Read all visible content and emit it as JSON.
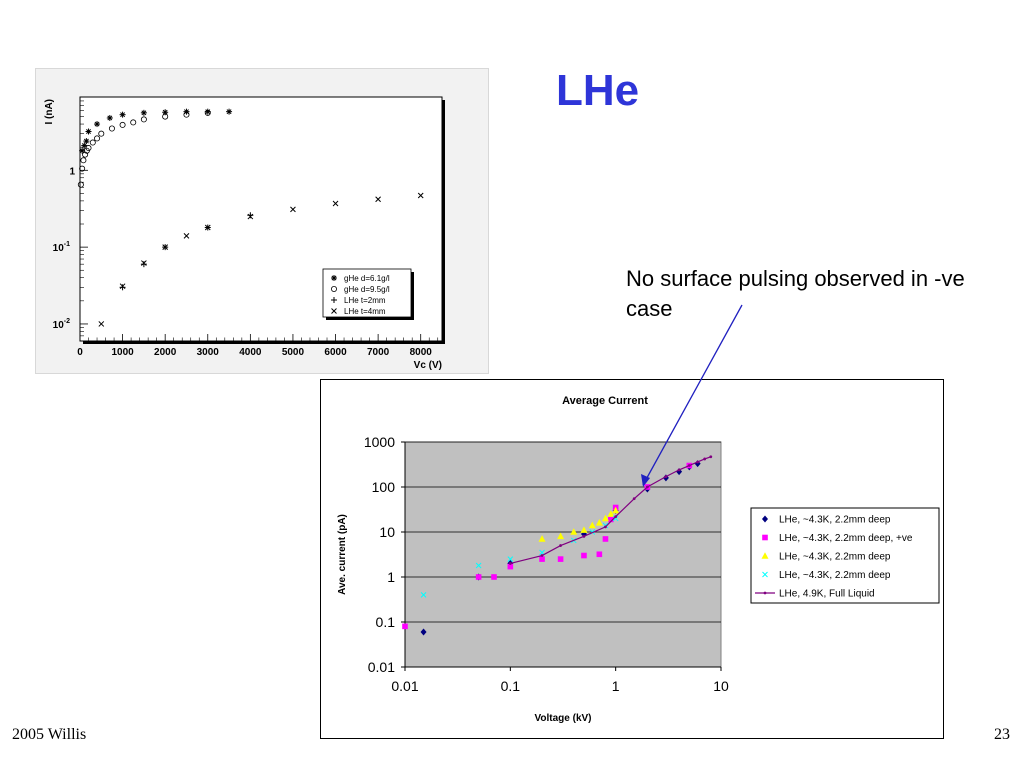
{
  "slide": {
    "title": "LHe",
    "note": "No surface pulsing observed in -ve case",
    "footer_left": "2005 Willis",
    "footer_right": "23"
  },
  "chart_data": [
    {
      "type": "scatter",
      "ylabel": "I (nA)",
      "xlabel": "Vc (V)",
      "xlim": [
        0,
        8500
      ],
      "ylim_log": [
        0.006,
        9
      ],
      "log_y": true,
      "x_ticks": [
        0,
        1000,
        2000,
        3000,
        4000,
        5000,
        6000,
        7000,
        8000
      ],
      "y_ticks": [
        {
          "value": 0.01,
          "base": "10",
          "exp": "-2"
        },
        {
          "value": 0.1,
          "base": "10",
          "exp": "-1"
        },
        {
          "value": 1,
          "base": "1",
          "exp": ""
        }
      ],
      "legend_position": "bottom-right",
      "series": [
        {
          "name": "gHe d=6.1g/l",
          "marker": "asterisk",
          "x": [
            50,
            100,
            150,
            200,
            400,
            700,
            1000,
            1500,
            2000,
            2500,
            3000,
            3500
          ],
          "y": [
            1.8,
            2.1,
            2.4,
            3.2,
            4.0,
            4.8,
            5.3,
            5.6,
            5.7,
            5.8,
            5.8,
            5.8
          ]
        },
        {
          "name": "gHe d=9.5g/l",
          "marker": "circle",
          "x": [
            20,
            50,
            80,
            120,
            160,
            200,
            300,
            400,
            500,
            750,
            1000,
            1250,
            1500,
            2000,
            2500,
            3000
          ],
          "y": [
            0.65,
            1.05,
            1.35,
            1.6,
            1.8,
            1.95,
            2.3,
            2.6,
            3.0,
            3.5,
            3.9,
            4.2,
            4.6,
            5.0,
            5.3,
            5.6
          ]
        },
        {
          "name": "LHe t=2mm",
          "marker": "plus",
          "x": [
            1000,
            1500,
            2000,
            3000,
            4000
          ],
          "y": [
            0.03,
            0.06,
            0.1,
            0.18,
            0.26
          ]
        },
        {
          "name": "LHe t=4mm",
          "marker": "cross",
          "x": [
            500,
            1000,
            1500,
            2000,
            2500,
            3000,
            4000,
            5000,
            6000,
            7000,
            8000
          ],
          "y": [
            0.01,
            0.031,
            0.062,
            0.1,
            0.14,
            0.18,
            0.25,
            0.31,
            0.37,
            0.42,
            0.47
          ]
        }
      ]
    },
    {
      "type": "scatter",
      "title": "Average Current",
      "xlabel": "Voltage (kV)",
      "ylabel": "Ave. current (pA)",
      "log_x": true,
      "log_y": true,
      "xlim": [
        0.01,
        10
      ],
      "ylim": [
        0.01,
        1000
      ],
      "x_ticks": [
        "0.01",
        "0.1",
        "1",
        "10"
      ],
      "y_ticks": [
        "0.01",
        "0.1",
        "1",
        "10",
        "100",
        "1000"
      ],
      "grid": true,
      "plot_background": "#c0c0c0",
      "legend_position": "right",
      "series": [
        {
          "name": "LHe, ~4.3K, 2.2mm deep",
          "marker": "diamond",
          "color": "#000080",
          "x": [
            0.015,
            0.05,
            0.1,
            0.5,
            1.0,
            2.0,
            3.0,
            4.0,
            5.0,
            6.0
          ],
          "y": [
            0.06,
            1.0,
            2.0,
            9.0,
            30,
            90,
            160,
            220,
            280,
            330
          ]
        },
        {
          "name": "LHe, ~4.3K, 2.2mm deep, +ve",
          "marker": "square",
          "color": "#ff00ff",
          "x": [
            0.01,
            0.05,
            0.07,
            0.1,
            0.2,
            0.3,
            0.5,
            0.7,
            0.8,
            0.9,
            1.0,
            2.0,
            5.0
          ],
          "y": [
            0.08,
            1.0,
            1.0,
            1.7,
            2.5,
            2.5,
            3.0,
            3.2,
            7.0,
            19,
            35,
            100,
            300
          ]
        },
        {
          "name": "LHe, ~4.3K, 2.2mm deep",
          "marker": "triangle",
          "color": "#ffff00",
          "x": [
            0.2,
            0.3,
            0.4,
            0.5,
            0.6,
            0.7,
            0.8,
            0.9,
            1.0
          ],
          "y": [
            7,
            8,
            10,
            11,
            14,
            16,
            20,
            25,
            30
          ]
        },
        {
          "name": "LHe, ~4.3K, 2.2mm deep",
          "marker": "x",
          "color": "#00ffff",
          "x": [
            0.015,
            0.05,
            0.1,
            0.2,
            0.4,
            0.6,
            0.8,
            1.0
          ],
          "y": [
            0.4,
            1.8,
            2.5,
            3.5,
            6.5,
            10,
            14,
            20
          ]
        },
        {
          "name": "LHe, 4.9K, Full Liquid",
          "marker": "line-dot",
          "color": "#800080",
          "x": [
            0.1,
            0.2,
            0.3,
            0.5,
            0.8,
            1.0,
            1.5,
            2.0,
            3.0,
            4.0,
            5.0,
            6.0,
            7.0,
            8.0
          ],
          "y": [
            2.0,
            3.0,
            5.0,
            8.0,
            13,
            22,
            55,
            100,
            170,
            240,
            300,
            360,
            420,
            470
          ]
        }
      ]
    }
  ]
}
